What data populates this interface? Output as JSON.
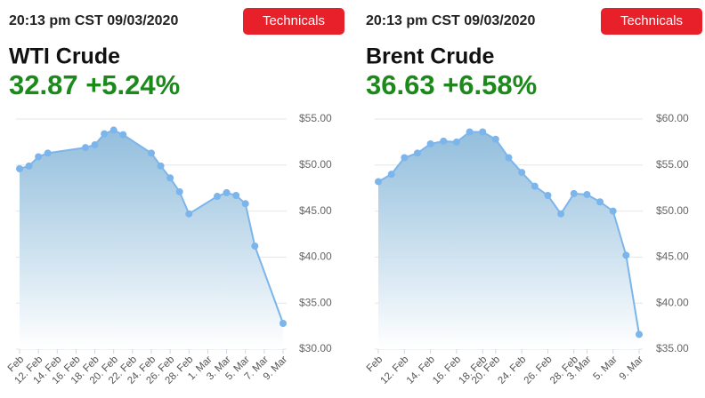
{
  "panels": [
    {
      "timestamp": "20:13 pm CST 09/03/2020",
      "button": "Technicals",
      "name": "WTI Crude",
      "quote": "32.87 +5.24%"
    },
    {
      "timestamp": "20:13 pm CST 09/03/2020",
      "button": "Technicals",
      "name": "Brent Crude",
      "quote": "36.63 +6.58%"
    }
  ],
  "chart_data": [
    {
      "type": "area",
      "color": "#7cb5ec",
      "x": [
        10,
        11,
        12,
        13,
        17,
        18,
        19,
        20,
        21,
        24,
        25,
        26,
        27,
        28,
        31,
        32,
        33,
        34,
        35,
        38
      ],
      "values": [
        49.6,
        49.9,
        50.9,
        51.3,
        51.9,
        52.2,
        53.4,
        53.8,
        53.3,
        51.3,
        49.9,
        48.6,
        47.1,
        44.7,
        46.6,
        47.0,
        46.7,
        45.8,
        41.2,
        32.8
      ],
      "xlim": [
        10,
        38
      ],
      "xticks": [
        {
          "value": 10,
          "label": "Feb"
        },
        {
          "value": 12,
          "label": "12. Feb"
        },
        {
          "value": 14,
          "label": "14. Feb"
        },
        {
          "value": 16,
          "label": "16. Feb"
        },
        {
          "value": 18,
          "label": "18. Feb"
        },
        {
          "value": 20,
          "label": "20. Feb"
        },
        {
          "value": 22,
          "label": "22. Feb"
        },
        {
          "value": 24,
          "label": "24. Feb"
        },
        {
          "value": 26,
          "label": "26. Feb"
        },
        {
          "value": 28,
          "label": "28. Feb"
        },
        {
          "value": 30,
          "label": "1. Mar"
        },
        {
          "value": 32,
          "label": "3. Mar"
        },
        {
          "value": 34,
          "label": "5. Mar"
        },
        {
          "value": 36,
          "label": "7. Mar"
        },
        {
          "value": 38,
          "label": "9. Mar"
        }
      ],
      "ylim": [
        30,
        55
      ],
      "yticks": [
        {
          "value": 30,
          "label": "$30.00"
        },
        {
          "value": 35,
          "label": "$35.00"
        },
        {
          "value": 40,
          "label": "$40.00"
        },
        {
          "value": 45,
          "label": "$45.00"
        },
        {
          "value": 50,
          "label": "$50.00"
        },
        {
          "value": 55,
          "label": "$55.00"
        }
      ],
      "grid": true
    },
    {
      "type": "area",
      "color": "#7cb5ec",
      "categories": [
        "Feb",
        null,
        "12. Feb",
        null,
        "14. Feb",
        null,
        "16. Feb",
        null,
        "18. Feb",
        "20. Feb",
        null,
        "24. Feb",
        null,
        "26. Feb",
        null,
        "28. Feb",
        "3. Mar",
        null,
        "5. Mar",
        null,
        "9. Mar"
      ],
      "values": [
        53.2,
        54.0,
        55.8,
        56.3,
        57.3,
        57.6,
        57.5,
        58.6,
        58.6,
        57.8,
        55.8,
        54.2,
        52.7,
        51.7,
        49.7,
        51.9,
        51.8,
        51.0,
        50.0,
        45.2,
        36.6
      ],
      "ylim": [
        35,
        60
      ],
      "yticks": [
        {
          "value": 35,
          "label": "$35.00"
        },
        {
          "value": 40,
          "label": "$40.00"
        },
        {
          "value": 45,
          "label": "$45.00"
        },
        {
          "value": 50,
          "label": "$50.00"
        },
        {
          "value": 55,
          "label": "$55.00"
        },
        {
          "value": 60,
          "label": "$60.00"
        }
      ],
      "grid": true
    }
  ]
}
